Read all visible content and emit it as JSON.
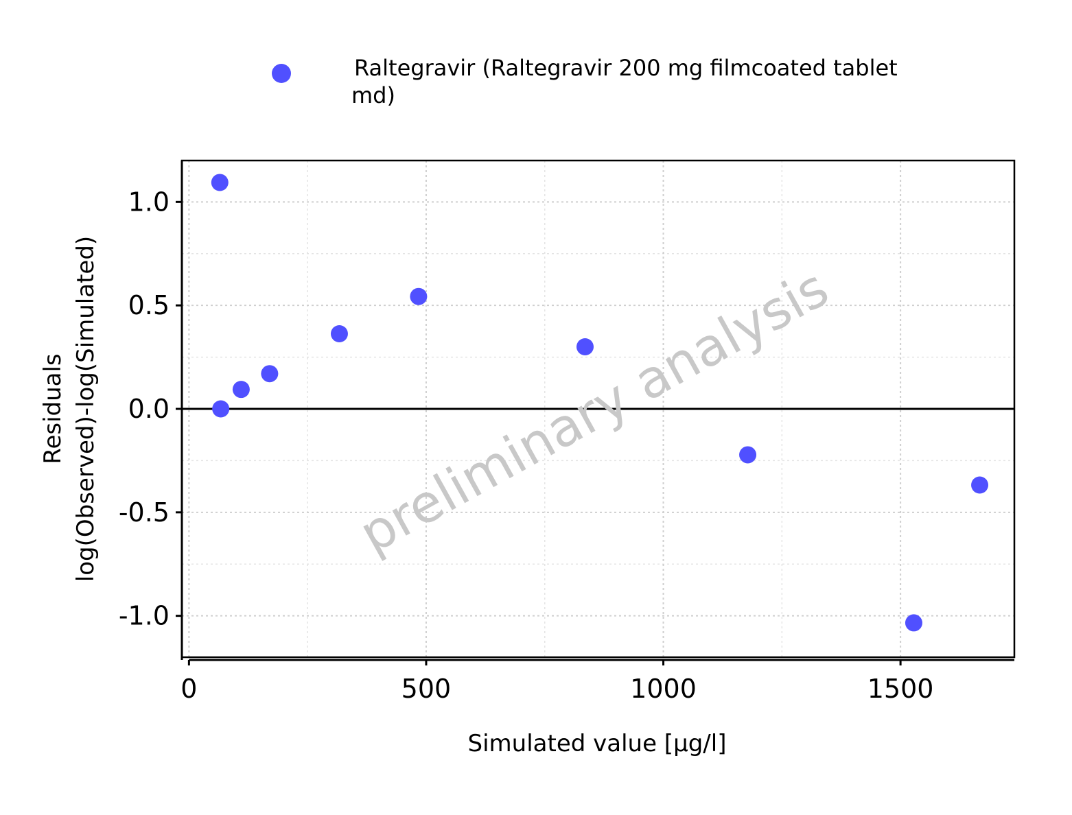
{
  "chart_data": {
    "type": "scatter",
    "xlabel": "Simulated value [µg/l]",
    "ylabel_lines": [
      "Residuals",
      "log(Observed)-log(Simulated)"
    ],
    "xlim": [
      -15,
      1740
    ],
    "ylim": [
      -1.2,
      1.2
    ],
    "x_ticks": [
      0,
      500,
      1000,
      1500
    ],
    "x_tick_labels": [
      "0",
      "500",
      "1000",
      "1500"
    ],
    "y_ticks": [
      1.0,
      0.5,
      0.0,
      -0.5,
      -1.0
    ],
    "y_tick_labels": [
      "1.0",
      "0.5",
      "0.0",
      "-0.5",
      "-1.0"
    ],
    "grid": true,
    "reference_line_y": 0,
    "legend_position": "top",
    "watermark": "preliminary analysis",
    "series": [
      {
        "name_lines": [
          "Raltegravir (Raltegravir 200 mg filmcoated tablet",
          "md)"
        ],
        "color": "#5050FF",
        "x": [
          65,
          67,
          110,
          170,
          317,
          484,
          835,
          1178,
          1528,
          1667
        ],
        "y": [
          1.094,
          0.0,
          0.094,
          0.17,
          0.363,
          0.543,
          0.3,
          -0.222,
          -1.034,
          -0.368
        ]
      }
    ]
  }
}
